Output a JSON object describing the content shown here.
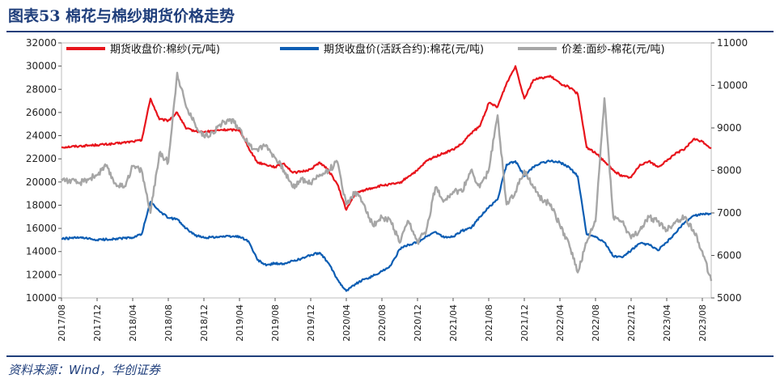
{
  "figure": {
    "title": "图表53  棉花与棉纱期货价格走势",
    "source": "资料来源：Wind，华创证券"
  },
  "chart_data": {
    "type": "line",
    "x_ticks": [
      "2017/08",
      "2017/12",
      "2018/04",
      "2018/08",
      "2018/12",
      "2019/04",
      "2019/08",
      "2019/12",
      "2020/04",
      "2020/08",
      "2020/12",
      "2021/04",
      "2021/08",
      "2021/12",
      "2022/04",
      "2022/08",
      "2022/12",
      "2023/04",
      "2023/08"
    ],
    "x_range": [
      "2017/08",
      "2023/09"
    ],
    "y_left": {
      "min": 10000,
      "max": 32000,
      "ticks": [
        10000,
        12000,
        14000,
        16000,
        18000,
        20000,
        22000,
        24000,
        26000,
        28000,
        30000,
        32000
      ]
    },
    "y_right": {
      "min": 5000,
      "max": 11000,
      "ticks": [
        5000,
        6000,
        7000,
        8000,
        9000,
        10000,
        11000
      ]
    },
    "legend_position": "top",
    "series": [
      {
        "name": "期货收盘价:棉纱(元/吨)",
        "color": "#e8141c",
        "axis": "left",
        "points": [
          [
            "2017/08",
            23000
          ],
          [
            "2017/10",
            23100
          ],
          [
            "2017/12",
            23200
          ],
          [
            "2018/02",
            23300
          ],
          [
            "2018/04",
            23500
          ],
          [
            "2018/05",
            23600
          ],
          [
            "2018/06",
            27200
          ],
          [
            "2018/07",
            25400
          ],
          [
            "2018/08",
            25300
          ],
          [
            "2018/09",
            26000
          ],
          [
            "2018/10",
            24600
          ],
          [
            "2018/11",
            24400
          ],
          [
            "2018/12",
            24300
          ],
          [
            "2019/02",
            24500
          ],
          [
            "2019/04",
            24500
          ],
          [
            "2019/05",
            23000
          ],
          [
            "2019/06",
            21700
          ],
          [
            "2019/07",
            21500
          ],
          [
            "2019/08",
            21300
          ],
          [
            "2019/09",
            21600
          ],
          [
            "2019/10",
            20800
          ],
          [
            "2019/11",
            20900
          ],
          [
            "2019/12",
            21100
          ],
          [
            "2020/01",
            21700
          ],
          [
            "2020/02",
            21000
          ],
          [
            "2020/03",
            19800
          ],
          [
            "2020/04",
            17600
          ],
          [
            "2020/05",
            19000
          ],
          [
            "2020/06",
            19300
          ],
          [
            "2020/07",
            19500
          ],
          [
            "2020/08",
            19700
          ],
          [
            "2020/09",
            19800
          ],
          [
            "2020/10",
            19900
          ],
          [
            "2020/11",
            20500
          ],
          [
            "2020/12",
            21000
          ],
          [
            "2021/01",
            21800
          ],
          [
            "2021/02",
            22200
          ],
          [
            "2021/03",
            22500
          ],
          [
            "2021/04",
            22800
          ],
          [
            "2021/05",
            23300
          ],
          [
            "2021/06",
            24200
          ],
          [
            "2021/07",
            24800
          ],
          [
            "2021/08",
            26800
          ],
          [
            "2021/09",
            26500
          ],
          [
            "2021/10",
            28500
          ],
          [
            "2021/11",
            30000
          ],
          [
            "2021/12",
            27200
          ],
          [
            "2022/01",
            28800
          ],
          [
            "2022/02",
            29000
          ],
          [
            "2022/03",
            29100
          ],
          [
            "2022/04",
            28500
          ],
          [
            "2022/05",
            28200
          ],
          [
            "2022/06",
            27600
          ],
          [
            "2022/07",
            23000
          ],
          [
            "2022/08",
            22500
          ],
          [
            "2022/09",
            21800
          ],
          [
            "2022/10",
            21000
          ],
          [
            "2022/11",
            20500
          ],
          [
            "2022/12",
            20400
          ],
          [
            "2023/01",
            21500
          ],
          [
            "2023/02",
            21800
          ],
          [
            "2023/03",
            21300
          ],
          [
            "2023/04",
            21800
          ],
          [
            "2023/05",
            22500
          ],
          [
            "2023/06",
            22800
          ],
          [
            "2023/07",
            23700
          ],
          [
            "2023/08",
            23500
          ],
          [
            "2023/09",
            22900
          ]
        ]
      },
      {
        "name": "期货收盘价(活跃合约):棉花(元/吨)",
        "color": "#0c5db3",
        "axis": "left",
        "points": [
          [
            "2017/08",
            15100
          ],
          [
            "2017/10",
            15200
          ],
          [
            "2017/12",
            15000
          ],
          [
            "2018/02",
            15100
          ],
          [
            "2018/04",
            15200
          ],
          [
            "2018/05",
            15500
          ],
          [
            "2018/06",
            18300
          ],
          [
            "2018/07",
            17500
          ],
          [
            "2018/08",
            16900
          ],
          [
            "2018/09",
            16800
          ],
          [
            "2018/10",
            16000
          ],
          [
            "2018/11",
            15400
          ],
          [
            "2018/12",
            15200
          ],
          [
            "2019/02",
            15300
          ],
          [
            "2019/04",
            15300
          ],
          [
            "2019/05",
            14900
          ],
          [
            "2019/06",
            13300
          ],
          [
            "2019/07",
            12800
          ],
          [
            "2019/08",
            13000
          ],
          [
            "2019/09",
            12900
          ],
          [
            "2019/10",
            13200
          ],
          [
            "2019/11",
            13400
          ],
          [
            "2019/12",
            13700
          ],
          [
            "2020/01",
            13900
          ],
          [
            "2020/02",
            13000
          ],
          [
            "2020/03",
            11600
          ],
          [
            "2020/04",
            10600
          ],
          [
            "2020/05",
            11200
          ],
          [
            "2020/06",
            11600
          ],
          [
            "2020/07",
            11900
          ],
          [
            "2020/08",
            12300
          ],
          [
            "2020/09",
            12800
          ],
          [
            "2020/10",
            14200
          ],
          [
            "2020/11",
            14600
          ],
          [
            "2020/12",
            14800
          ],
          [
            "2021/01",
            15300
          ],
          [
            "2021/02",
            15700
          ],
          [
            "2021/03",
            15200
          ],
          [
            "2021/04",
            15300
          ],
          [
            "2021/05",
            15800
          ],
          [
            "2021/06",
            16000
          ],
          [
            "2021/07",
            17000
          ],
          [
            "2021/08",
            17800
          ],
          [
            "2021/09",
            18500
          ],
          [
            "2021/10",
            21500
          ],
          [
            "2021/11",
            21800
          ],
          [
            "2021/12",
            20500
          ],
          [
            "2022/01",
            21300
          ],
          [
            "2022/02",
            21700
          ],
          [
            "2022/03",
            21800
          ],
          [
            "2022/04",
            21700
          ],
          [
            "2022/05",
            21300
          ],
          [
            "2022/06",
            20500
          ],
          [
            "2022/07",
            15500
          ],
          [
            "2022/08",
            15300
          ],
          [
            "2022/09",
            14800
          ],
          [
            "2022/10",
            13600
          ],
          [
            "2022/11",
            13500
          ],
          [
            "2022/12",
            14100
          ],
          [
            "2023/01",
            14700
          ],
          [
            "2023/02",
            14600
          ],
          [
            "2023/03",
            14100
          ],
          [
            "2023/04",
            14800
          ],
          [
            "2023/05",
            15600
          ],
          [
            "2023/06",
            16500
          ],
          [
            "2023/07",
            17100
          ],
          [
            "2023/08",
            17200
          ],
          [
            "2023/09",
            17300
          ]
        ]
      },
      {
        "name": "价差:面纱-棉花(元/吨)",
        "color": "#a6a6a6",
        "axis": "right",
        "points": [
          [
            "2017/08",
            7800
          ],
          [
            "2017/10",
            7700
          ],
          [
            "2017/12",
            7900
          ],
          [
            "2018/01",
            8100
          ],
          [
            "2018/02",
            7700
          ],
          [
            "2018/03",
            7600
          ],
          [
            "2018/04",
            8100
          ],
          [
            "2018/05",
            8000
          ],
          [
            "2018/06",
            7000
          ],
          [
            "2018/07",
            8400
          ],
          [
            "2018/08",
            8200
          ],
          [
            "2018/09",
            10300
          ],
          [
            "2018/10",
            9500
          ],
          [
            "2018/11",
            9100
          ],
          [
            "2018/12",
            8800
          ],
          [
            "2019/01",
            8900
          ],
          [
            "2019/02",
            9100
          ],
          [
            "2019/03",
            9200
          ],
          [
            "2019/04",
            9000
          ],
          [
            "2019/05",
            8600
          ],
          [
            "2019/06",
            8500
          ],
          [
            "2019/07",
            8600
          ],
          [
            "2019/08",
            8300
          ],
          [
            "2019/09",
            8000
          ],
          [
            "2019/10",
            7600
          ],
          [
            "2019/11",
            7800
          ],
          [
            "2019/12",
            7700
          ],
          [
            "2020/01",
            7900
          ],
          [
            "2020/02",
            8000
          ],
          [
            "2020/03",
            8200
          ],
          [
            "2020/04",
            7200
          ],
          [
            "2020/05",
            7500
          ],
          [
            "2020/06",
            7200
          ],
          [
            "2020/07",
            6700
          ],
          [
            "2020/08",
            6900
          ],
          [
            "2020/09",
            6800
          ],
          [
            "2020/10",
            6300
          ],
          [
            "2020/11",
            6800
          ],
          [
            "2020/12",
            6300
          ],
          [
            "2021/01",
            6600
          ],
          [
            "2021/02",
            7600
          ],
          [
            "2021/03",
            7300
          ],
          [
            "2021/04",
            7500
          ],
          [
            "2021/05",
            7500
          ],
          [
            "2021/06",
            8000
          ],
          [
            "2021/07",
            7600
          ],
          [
            "2021/08",
            8000
          ],
          [
            "2021/09",
            9300
          ],
          [
            "2021/10",
            7200
          ],
          [
            "2021/11",
            7500
          ],
          [
            "2021/12",
            8000
          ],
          [
            "2022/01",
            7600
          ],
          [
            "2022/02",
            7300
          ],
          [
            "2022/03",
            7200
          ],
          [
            "2022/04",
            6700
          ],
          [
            "2022/05",
            6300
          ],
          [
            "2022/06",
            5600
          ],
          [
            "2022/07",
            6300
          ],
          [
            "2022/08",
            6800
          ],
          [
            "2022/09",
            9700
          ],
          [
            "2022/10",
            6900
          ],
          [
            "2022/11",
            6800
          ],
          [
            "2022/12",
            6400
          ],
          [
            "2023/01",
            6600
          ],
          [
            "2023/02",
            6900
          ],
          [
            "2023/03",
            6800
          ],
          [
            "2023/04",
            6600
          ],
          [
            "2023/05",
            6800
          ],
          [
            "2023/06",
            6900
          ],
          [
            "2023/07",
            6600
          ],
          [
            "2023/08",
            6100
          ],
          [
            "2023/09",
            5400
          ]
        ]
      }
    ]
  }
}
